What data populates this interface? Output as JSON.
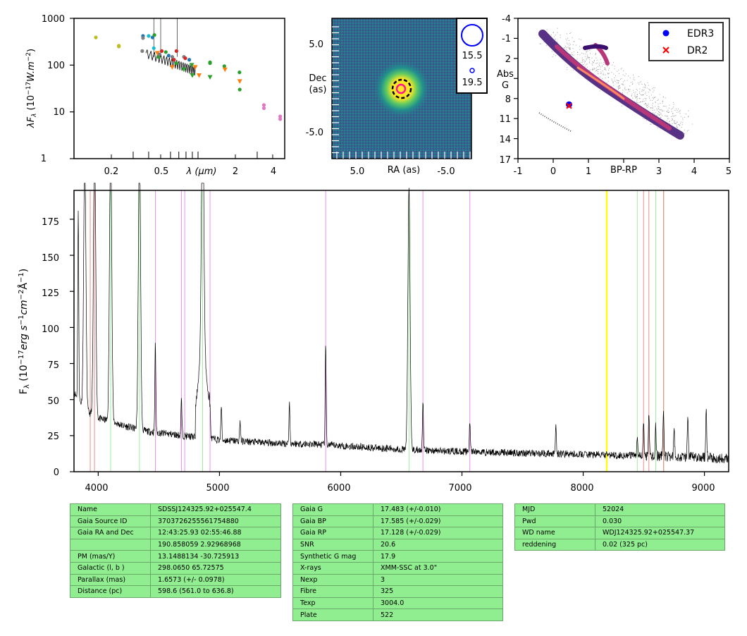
{
  "sed": {
    "ylabel": "λF",
    "ylabel_sub": "λ",
    "ylabel_units": " (10",
    "ylabel_exp": "−17",
    "ylabel_tail": "W.m",
    "ylabel_tail_exp": "−2",
    "ylabel_close": ")",
    "xlabel": "λ (μm)",
    "yticks": [
      "1",
      "10",
      "100",
      "1000"
    ],
    "xticks": [
      "0.2",
      "0.5",
      "2",
      "4"
    ],
    "xscale": "log",
    "yscale": "log",
    "xlim": [
      0.1,
      5
    ],
    "ylim": [
      1,
      1000
    ]
  },
  "image": {
    "ylabel_line1": "Dec",
    "ylabel_line2": "(as)",
    "xlabel": "RA (as)",
    "xticks": [
      "5.0",
      "-5.0"
    ],
    "yticks": [
      "5.0",
      "-5.0"
    ],
    "legend": [
      "15.5",
      "19.5"
    ]
  },
  "hr": {
    "ylabel_line1": "Abs",
    "ylabel_line2": "G",
    "xlabel": "BP-RP",
    "xticks": [
      "-1",
      "0",
      "1",
      "2",
      "3",
      "4",
      "5"
    ],
    "yticks": [
      "-4",
      "-1",
      "2",
      "5",
      "8",
      "11",
      "14",
      "17"
    ],
    "xlim": [
      -1,
      5
    ],
    "ylim": [
      17,
      -4
    ],
    "legend": [
      {
        "label": "EDR3",
        "color": "#0000ff",
        "marker": "circle"
      },
      {
        "label": "DR2",
        "color": "#ff0000",
        "marker": "x"
      }
    ],
    "target": {
      "bp_rp": 0.45,
      "abs_g": 8.9
    }
  },
  "spectrum": {
    "ylabel": "F",
    "ylabel_sub": "λ",
    "ylabel_rest": " (10",
    "ylabel_exp": "−17",
    "ylabel_units": "erg s",
    "ylabel_exp2": "−1",
    "ylabel_units2": "cm",
    "ylabel_exp3": "−2",
    "ylabel_units3": "Å",
    "ylabel_exp4": "−1",
    "ylabel_close": ")",
    "xticks": [
      "4000",
      "5000",
      "6000",
      "7000",
      "8000",
      "9000"
    ],
    "yticks": [
      "0",
      "25",
      "50",
      "75",
      "100",
      "125",
      "150",
      "175"
    ],
    "xlim": [
      3800,
      9200
    ],
    "ylim": [
      0,
      195
    ]
  },
  "chart_data": [
    {
      "type": "scatter",
      "name": "SED",
      "xscale": "log",
      "yscale": "log",
      "xlim": [
        0.1,
        5
      ],
      "ylim": [
        1,
        1000
      ],
      "points": [
        {
          "x": 0.15,
          "y": 390,
          "color": "#bcbd22"
        },
        {
          "x": 0.23,
          "y": 260,
          "color": "#bcbd22"
        },
        {
          "x": 0.23,
          "y": 250,
          "color": "#bcbd22"
        },
        {
          "x": 0.355,
          "y": 200,
          "color": "#7f7f7f"
        },
        {
          "x": 0.36,
          "y": 420,
          "color": "#1f77b4"
        },
        {
          "x": 0.36,
          "y": 380,
          "color": "#7f7f7f"
        },
        {
          "x": 0.4,
          "y": 420,
          "color": "#17becf"
        },
        {
          "x": 0.43,
          "y": 390,
          "color": "#1f77b4"
        },
        {
          "x": 0.44,
          "y": 230,
          "color": "#17becf"
        },
        {
          "x": 0.445,
          "y": 440,
          "color": "#2ca02c"
        },
        {
          "x": 0.47,
          "y": 180,
          "color": "#ff7f0e"
        },
        {
          "x": 0.48,
          "y": 150,
          "color": "#2ca02c"
        },
        {
          "x": 0.49,
          "y": 170,
          "color": "#7f7f7f"
        },
        {
          "x": 0.51,
          "y": 200,
          "color": "#d62728"
        },
        {
          "x": 0.55,
          "y": 190,
          "color": "#2ca02c"
        },
        {
          "x": 0.58,
          "y": 160,
          "color": "#1f77b4"
        },
        {
          "x": 0.62,
          "y": 150,
          "color": "#7f7f7f"
        },
        {
          "x": 0.62,
          "y": 90,
          "color": "#ff7f0e"
        },
        {
          "x": 0.64,
          "y": 130,
          "color": "#d62728"
        },
        {
          "x": 0.67,
          "y": 200,
          "color": "#d62728"
        },
        {
          "x": 0.67,
          "y": 110,
          "color": "#2ca02c"
        },
        {
          "x": 0.77,
          "y": 150,
          "color": "#7f7f7f"
        },
        {
          "x": 0.77,
          "y": 80,
          "color": "#2ca02c"
        },
        {
          "x": 0.79,
          "y": 140,
          "color": "#d62728"
        },
        {
          "x": 0.85,
          "y": 130,
          "color": "#1f77b4"
        },
        {
          "x": 0.89,
          "y": 100,
          "color": "#2ca02c"
        },
        {
          "x": 0.9,
          "y": 60,
          "color": "#2ca02c"
        },
        {
          "x": 0.95,
          "y": 90,
          "color": "#ff7f0e"
        },
        {
          "x": 1.02,
          "y": 60,
          "color": "#ff7f0e"
        },
        {
          "x": 1.25,
          "y": 115,
          "color": "#2ca02c"
        },
        {
          "x": 1.25,
          "y": 110,
          "color": "#2ca02c"
        },
        {
          "x": 1.25,
          "y": 55,
          "color": "#2ca02c"
        },
        {
          "x": 1.63,
          "y": 95,
          "color": "#2ca02c"
        },
        {
          "x": 1.65,
          "y": 80,
          "color": "#ff7f0e"
        },
        {
          "x": 2.16,
          "y": 70,
          "color": "#2ca02c"
        },
        {
          "x": 2.17,
          "y": 45,
          "color": "#ff7f0e"
        },
        {
          "x": 2.17,
          "y": 30,
          "color": "#2ca02c"
        },
        {
          "x": 3.4,
          "y": 14,
          "color": "#e377c2"
        },
        {
          "x": 3.4,
          "y": 12,
          "color": "#e377c2"
        },
        {
          "x": 4.6,
          "y": 8,
          "color": "#e377c2"
        },
        {
          "x": 4.6,
          "y": 7,
          "color": "#e377c2"
        }
      ]
    },
    {
      "type": "line",
      "name": "spectrum",
      "xlim": [
        3800,
        9200
      ],
      "ylim": [
        0,
        195
      ],
      "continuum": [
        [
          3800,
          55
        ],
        [
          3900,
          42
        ],
        [
          4000,
          37
        ],
        [
          4100,
          35
        ],
        [
          4200,
          32
        ],
        [
          4400,
          28
        ],
        [
          4600,
          26
        ],
        [
          4800,
          24
        ],
        [
          5000,
          22
        ],
        [
          5400,
          20
        ],
        [
          5800,
          19
        ],
        [
          6200,
          17
        ],
        [
          6600,
          15
        ],
        [
          7000,
          14
        ],
        [
          7500,
          13
        ],
        [
          8000,
          12
        ],
        [
          8500,
          11
        ],
        [
          9000,
          10
        ],
        [
          9200,
          9
        ]
      ],
      "emission_lines": [
        {
          "x": 3835,
          "h": 130
        },
        {
          "x": 3889,
          "h": 180
        },
        {
          "x": 3970,
          "h": 200
        },
        {
          "x": 4102,
          "h": 200
        },
        {
          "x": 4340,
          "h": 200
        },
        {
          "x": 4471,
          "h": 62
        },
        {
          "x": 4686,
          "h": 25
        },
        {
          "x": 4861,
          "h": 200
        },
        {
          "x": 4922,
          "h": 23
        },
        {
          "x": 5015,
          "h": 24
        },
        {
          "x": 5170,
          "h": 14
        },
        {
          "x": 5577,
          "h": 28
        },
        {
          "x": 5876,
          "h": 70
        },
        {
          "x": 6563,
          "h": 180
        },
        {
          "x": 6678,
          "h": 35
        },
        {
          "x": 7065,
          "h": 22
        },
        {
          "x": 7775,
          "h": 18
        },
        {
          "x": 8446,
          "h": 14
        },
        {
          "x": 8498,
          "h": 22
        },
        {
          "x": 8542,
          "h": 28
        },
        {
          "x": 8598,
          "h": 20
        },
        {
          "x": 8662,
          "h": 34
        },
        {
          "x": 8750,
          "h": 20
        },
        {
          "x": 8863,
          "h": 30
        },
        {
          "x": 9015,
          "h": 32
        }
      ],
      "vlines": [
        {
          "x": 3934,
          "color": "#f08080"
        },
        {
          "x": 3969,
          "color": "#f08080"
        },
        {
          "x": 4102,
          "color": "#90ee90"
        },
        {
          "x": 4340,
          "color": "#90ee90"
        },
        {
          "x": 4471,
          "color": "#ee82ee"
        },
        {
          "x": 4686,
          "color": "#ee82ee"
        },
        {
          "x": 4713,
          "color": "#ee82ee"
        },
        {
          "x": 4861,
          "color": "#90ee90"
        },
        {
          "x": 4922,
          "color": "#ee82ee"
        },
        {
          "x": 5876,
          "color": "#ee82ee"
        },
        {
          "x": 6563,
          "color": "#90ee90"
        },
        {
          "x": 6678,
          "color": "#ee82ee"
        },
        {
          "x": 7065,
          "color": "#ee82ee"
        },
        {
          "x": 8192,
          "color": "#ffff00"
        },
        {
          "x": 8196,
          "color": "#ffff00"
        },
        {
          "x": 8446,
          "color": "#90ee90"
        },
        {
          "x": 8498,
          "color": "#f08080"
        },
        {
          "x": 8542,
          "color": "#f08080"
        },
        {
          "x": 8598,
          "color": "#90ee90"
        },
        {
          "x": 8662,
          "color": "#f08080"
        },
        {
          "x": 8665,
          "color": "#d2b48c"
        }
      ]
    }
  ],
  "tables": [
    [
      [
        "Name",
        "SDSSJ124325.92+025547.4"
      ],
      [
        "Gaia Source ID",
        "3703726255561754880"
      ],
      [
        "Gaia RA and Dec",
        "12:43:25.93    02:55:46.88"
      ],
      [
        "",
        "190.858059    2.92968968"
      ],
      [
        "PM (mas/Y)",
        "13.1488134    -30.725913"
      ],
      [
        "Galactic (l, b )",
        "298.0650    65.72575"
      ],
      [
        "Parallax (mas)",
        "1.6573 (+/- 0.0978)"
      ],
      [
        "Distance (pc)",
        "598.6 (561.0 to 636.8)"
      ]
    ],
    [
      [
        "Gaia G",
        "17.483 (+/-0.010)"
      ],
      [
        "Gaia BP",
        "17.585 (+/-0.029)"
      ],
      [
        "Gaia RP",
        "17.128 (+/-0.029)"
      ],
      [
        "SNR",
        "20.6"
      ],
      [
        "Synthetic G mag",
        "17.9"
      ],
      [
        "X-rays",
        "XMM-SSC at 3.0\""
      ],
      [
        "Nexp",
        "3"
      ],
      [
        "Fibre",
        "325"
      ],
      [
        "Texp",
        "3004.0"
      ],
      [
        "Plate",
        "522"
      ]
    ],
    [
      [
        "MJD",
        "52024"
      ],
      [
        "Pwd",
        "0.030"
      ],
      [
        "WD name",
        "WDJ124325.92+025547.37"
      ],
      [
        "reddening",
        "0.02 (325 pc)"
      ]
    ]
  ]
}
